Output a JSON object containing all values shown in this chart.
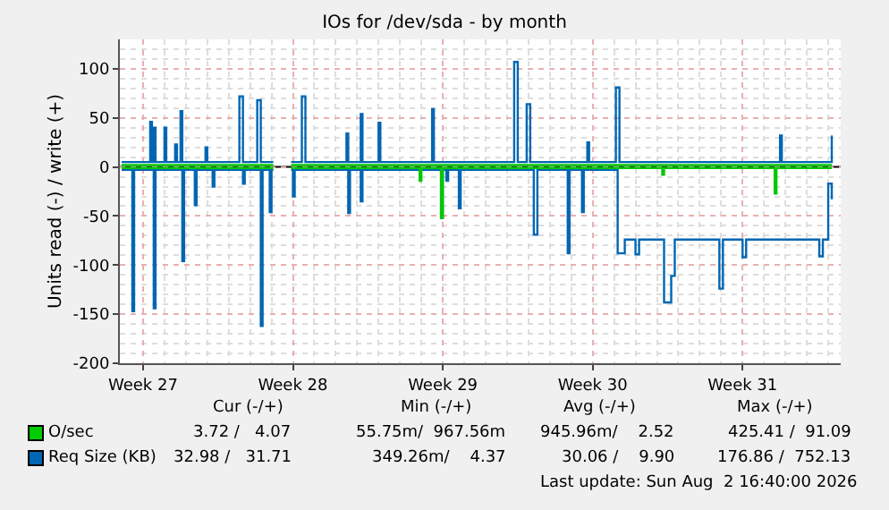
{
  "chart_data": {
    "type": "step",
    "title": "IOs for /dev/sda - by month",
    "ylabel": "Units read (-) / write (+)",
    "xlim": [
      "2026-06-27T22:00",
      "2026-07-31T14:00"
    ],
    "xticks": [
      {
        "value": "2026-06-29",
        "label": "Week 27"
      },
      {
        "value": "2026-07-06",
        "label": "Week 28"
      },
      {
        "value": "2026-07-13",
        "label": "Week 29"
      },
      {
        "value": "2026-07-20",
        "label": "Week 30"
      },
      {
        "value": "2026-07-27",
        "label": "Week 31"
      }
    ],
    "ylim": [
      -200,
      130
    ],
    "yticks": [
      -200,
      -150,
      -100,
      -50,
      0,
      50,
      100
    ],
    "grid": true,
    "legend": "bottom",
    "marker": "none",
    "line_style": "solid",
    "ref_lines": [
      {
        "axis": "y",
        "value": 0,
        "color": "#000000"
      }
    ],
    "series": [
      {
        "name": "Req Size (KB)",
        "color": "#0066b3",
        "x": [
          "2026-06-28T00:00",
          "2026-06-29T06:00",
          "2026-06-29T08:00",
          "2026-06-29T10:00",
          "2026-06-29T12:00",
          "2026-06-29T14:00",
          "2026-06-30T00:00",
          "2026-06-30T02:00",
          "2026-06-30T12:00",
          "2026-06-30T14:00",
          "2026-06-30T18:00",
          "2026-06-30T20:00",
          "2026-07-01T22:00",
          "2026-07-02T00:00",
          "2026-07-03T12:00",
          "2026-07-03T16:00",
          "2026-07-04T08:00",
          "2026-07-04T12:00",
          "2026-07-05T02:00",
          "2026-07-05T12:00",
          "2026-07-05T22:00",
          "2026-07-06T10:00",
          "2026-07-06T14:00",
          "2026-07-08T12:00",
          "2026-07-08T14:00",
          "2026-07-09T04:00",
          "2026-07-09T06:00",
          "2026-07-10T00:00",
          "2026-07-10T02:00",
          "2026-07-12T12:00",
          "2026-07-12T14:00",
          "2026-07-16T06:00",
          "2026-07-16T08:00",
          "2026-07-16T12:00",
          "2026-07-16T22:00",
          "2026-07-17T02:00",
          "2026-07-19T18:00",
          "2026-07-19T20:00",
          "2026-07-21T00:00",
          "2026-07-21T02:00",
          "2026-07-21T06:00",
          "2026-07-28T18:00",
          "2026-07-28T20:00",
          "2026-07-31T02:00",
          "2026-07-31T04:00"
        ],
        "values": [
          5,
          5,
          46,
          5,
          40,
          5,
          40,
          5,
          23,
          5,
          57,
          5,
          20,
          5,
          72,
          5,
          68,
          5,
          5,
          null,
          5,
          72,
          5,
          34,
          5,
          54,
          5,
          45,
          5,
          59,
          5,
          5,
          107,
          5,
          64,
          5,
          25,
          5,
          5,
          81,
          5,
          32,
          5,
          5,
          32
        ]
      },
      {
        "color": "#0066b3",
        "x": [
          "2026-06-28T00:00",
          "2026-06-28T10:00",
          "2026-06-28T12:00",
          "2026-06-28T14:00",
          "2026-06-29T10:00",
          "2026-06-29T12:00",
          "2026-06-29T14:00",
          "2026-06-30T18:00",
          "2026-06-30T20:00",
          "2026-06-30T22:00",
          "2026-07-01T08:00",
          "2026-07-01T10:00",
          "2026-07-01T12:00",
          "2026-07-02T04:00",
          "2026-07-02T06:00",
          "2026-07-02T08:00",
          "2026-07-03T14:00",
          "2026-07-03T16:00",
          "2026-07-03T18:00",
          "2026-07-04T10:00",
          "2026-07-04T12:00",
          "2026-07-04T14:00",
          "2026-07-04T20:00",
          "2026-07-04T22:00",
          "2026-07-05T00:00",
          "2026-07-05T02:00",
          "2026-07-05T12:00",
          "2026-07-05T22:00",
          "2026-07-06T00:00",
          "2026-07-06T02:00",
          "2026-07-08T12:00",
          "2026-07-08T14:00",
          "2026-07-08T16:00",
          "2026-07-09T02:00",
          "2026-07-09T04:00",
          "2026-07-09T06:00",
          "2026-07-12T20:00",
          "2026-07-12T22:00",
          "2026-07-13T00:00",
          "2026-07-13T02:00",
          "2026-07-13T04:00",
          "2026-07-13T06:00",
          "2026-07-13T16:00",
          "2026-07-13T18:00",
          "2026-07-13T20:00",
          "2026-07-17T04:00",
          "2026-07-17T06:00",
          "2026-07-17T10:00",
          "2026-07-18T18:00",
          "2026-07-18T20:00",
          "2026-07-18T22:00",
          "2026-07-19T10:00",
          "2026-07-19T12:00",
          "2026-07-19T14:00",
          "2026-07-21T00:00",
          "2026-07-21T04:00",
          "2026-07-21T12:00",
          "2026-07-21T22:00",
          "2026-07-22T00:00",
          "2026-07-22T04:00",
          "2026-07-23T06:00",
          "2026-07-23T08:00",
          "2026-07-23T16:00",
          "2026-07-23T20:00",
          "2026-07-25T20:00",
          "2026-07-25T22:00",
          "2026-07-26T02:00",
          "2026-07-26T22:00",
          "2026-07-27T00:00",
          "2026-07-27T04:00",
          "2026-07-30T12:00",
          "2026-07-30T14:00",
          "2026-07-30T18:00",
          "2026-07-30T22:00",
          "2026-07-31T00:00",
          "2026-07-31T04:00"
        ],
        "values": [
          -3,
          -3,
          -147,
          -3,
          -3,
          -144,
          -3,
          -3,
          -96,
          -3,
          -3,
          -39,
          -3,
          -3,
          -20,
          -3,
          -3,
          -17,
          -3,
          -3,
          -162,
          -3,
          -3,
          -46,
          -3,
          -3,
          null,
          -3,
          -30,
          -3,
          -3,
          -47,
          -3,
          -3,
          -35,
          -3,
          -3,
          -52,
          -3,
          -3,
          -14,
          -3,
          -3,
          -42,
          -3,
          -3,
          -69,
          -3,
          -3,
          -88,
          -3,
          -3,
          -46,
          -3,
          -3,
          -88,
          -74,
          -74,
          -89,
          -74,
          -74,
          -138,
          -111,
          -74,
          -74,
          -124,
          -74,
          -74,
          -92,
          -74,
          -74,
          -91,
          -74,
          -74,
          -17,
          -33
        ]
      },
      {
        "name": "O/sec",
        "color": "#00cc00",
        "x": [
          "2026-06-28T00:00",
          "2026-07-05T02:00",
          "2026-07-05T12:00",
          "2026-07-05T22:00",
          "2026-07-31T04:00"
        ],
        "values": [
          2,
          2,
          null,
          2,
          2
        ]
      },
      {
        "color": "#00c800",
        "x": [
          "2026-06-28T00:00",
          "2026-07-05T02:00",
          "2026-07-05T12:00",
          "2026-07-05T22:00",
          "2026-07-11T20:00",
          "2026-07-11T22:00",
          "2026-07-12T00:00",
          "2026-07-12T20:00",
          "2026-07-12T22:00",
          "2026-07-13T00:00",
          "2026-07-23T04:00",
          "2026-07-23T06:00",
          "2026-07-23T08:00",
          "2026-07-28T10:00",
          "2026-07-28T12:00",
          "2026-07-28T14:00",
          "2026-07-31T04:00"
        ],
        "values": [
          -1,
          -1,
          null,
          -1,
          -1,
          -14,
          -1,
          -1,
          -52,
          -1,
          -1,
          -8,
          -1,
          -1,
          -27,
          -1,
          -1
        ]
      }
    ],
    "annotations": [
      "Cur (-/+)",
      "Min (-/+)",
      "Avg (-/+)",
      "Max (-/+)",
      "3.72 /   4.07",
      "55.75m/  967.56m",
      "945.96m/    2.52",
      "425.41 /  91.09",
      "32.98 /   31.71",
      "349.26m/    4.37",
      "30.06 /    9.90",
      "176.86 /  752.13",
      "Last update: Sun Aug  2 16:40:00 2026"
    ]
  }
}
